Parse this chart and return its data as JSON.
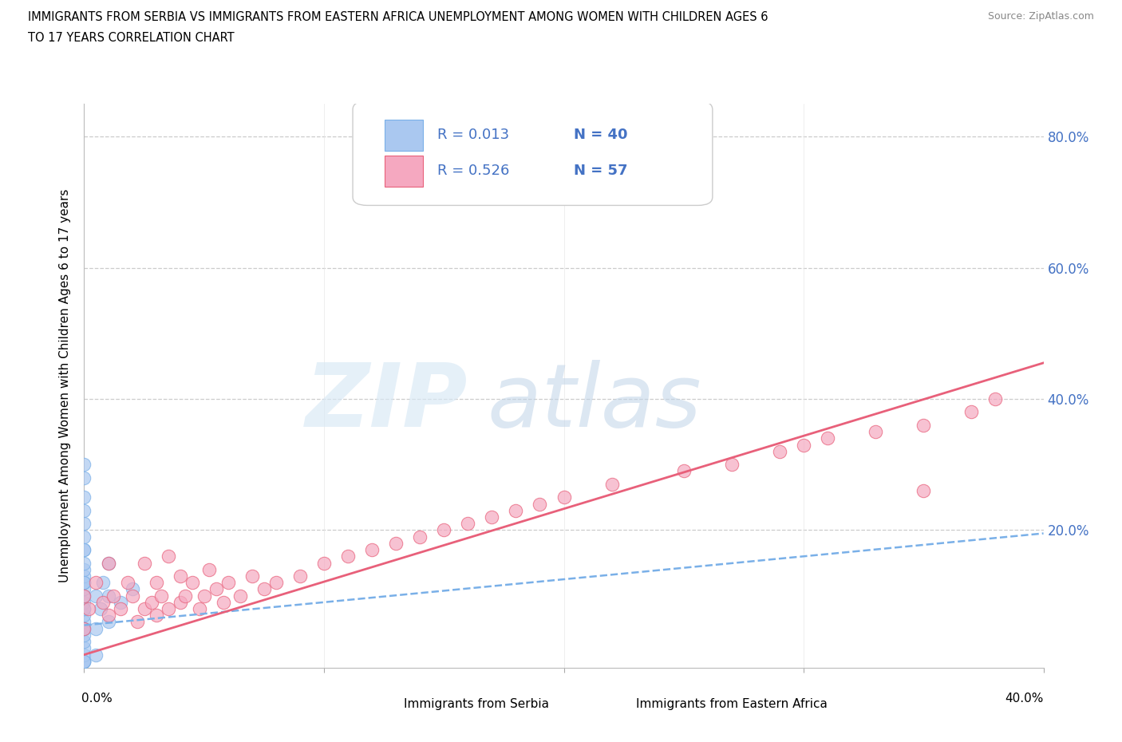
{
  "title_line1": "IMMIGRANTS FROM SERBIA VS IMMIGRANTS FROM EASTERN AFRICA UNEMPLOYMENT AMONG WOMEN WITH CHILDREN AGES 6",
  "title_line2": "TO 17 YEARS CORRELATION CHART",
  "source": "Source: ZipAtlas.com",
  "ylabel": "Unemployment Among Women with Children Ages 6 to 17 years",
  "xlim": [
    0.0,
    0.4
  ],
  "ylim": [
    -0.01,
    0.85
  ],
  "yticks": [
    0.0,
    0.2,
    0.4,
    0.6,
    0.8
  ],
  "ytick_labels": [
    "",
    "20.0%",
    "40.0%",
    "60.0%",
    "80.0%"
  ],
  "legend_R1": "R = 0.013",
  "legend_N1": "N = 40",
  "legend_R2": "R = 0.526",
  "legend_N2": "N = 57",
  "legend_text_color": "#4472c4",
  "label1": "Immigrants from Serbia",
  "label2": "Immigrants from Eastern Africa",
  "series1_color": "#aac8f0",
  "series2_color": "#f5a8c0",
  "trendline1_color": "#7ab0e8",
  "trendline2_color": "#e8607a",
  "serbia_x": [
    0.0,
    0.0,
    0.0,
    0.0,
    0.0,
    0.0,
    0.0,
    0.0,
    0.0,
    0.0,
    0.0,
    0.0,
    0.0,
    0.0,
    0.0,
    0.0,
    0.0,
    0.0,
    0.0,
    0.0,
    0.0,
    0.0,
    0.0,
    0.0,
    0.0,
    0.0,
    0.0,
    0.0,
    0.0,
    0.0,
    0.005,
    0.005,
    0.005,
    0.007,
    0.008,
    0.01,
    0.01,
    0.01,
    0.015,
    0.02
  ],
  "serbia_y": [
    0.0,
    0.0,
    0.0,
    0.01,
    0.02,
    0.03,
    0.04,
    0.05,
    0.06,
    0.07,
    0.08,
    0.09,
    0.1,
    0.11,
    0.12,
    0.13,
    0.14,
    0.15,
    0.17,
    0.19,
    0.21,
    0.23,
    0.25,
    0.28,
    0.3,
    0.0,
    0.05,
    0.08,
    0.12,
    0.17,
    0.01,
    0.05,
    0.1,
    0.08,
    0.12,
    0.06,
    0.1,
    0.15,
    0.09,
    0.11
  ],
  "eastafrica_x": [
    0.0,
    0.0,
    0.002,
    0.005,
    0.008,
    0.01,
    0.01,
    0.012,
    0.015,
    0.018,
    0.02,
    0.022,
    0.025,
    0.025,
    0.028,
    0.03,
    0.03,
    0.032,
    0.035,
    0.035,
    0.04,
    0.04,
    0.042,
    0.045,
    0.048,
    0.05,
    0.052,
    0.055,
    0.058,
    0.06,
    0.065,
    0.07,
    0.075,
    0.08,
    0.09,
    0.1,
    0.11,
    0.12,
    0.13,
    0.14,
    0.15,
    0.16,
    0.17,
    0.18,
    0.19,
    0.2,
    0.22,
    0.25,
    0.27,
    0.29,
    0.3,
    0.31,
    0.33,
    0.35,
    0.37,
    0.38,
    0.35
  ],
  "eastafrica_y": [
    0.05,
    0.1,
    0.08,
    0.12,
    0.09,
    0.07,
    0.15,
    0.1,
    0.08,
    0.12,
    0.1,
    0.06,
    0.08,
    0.15,
    0.09,
    0.07,
    0.12,
    0.1,
    0.08,
    0.16,
    0.09,
    0.13,
    0.1,
    0.12,
    0.08,
    0.1,
    0.14,
    0.11,
    0.09,
    0.12,
    0.1,
    0.13,
    0.11,
    0.12,
    0.13,
    0.15,
    0.16,
    0.17,
    0.18,
    0.19,
    0.2,
    0.21,
    0.22,
    0.23,
    0.24,
    0.25,
    0.27,
    0.29,
    0.3,
    0.32,
    0.33,
    0.34,
    0.35,
    0.36,
    0.38,
    0.4,
    0.26
  ],
  "serbia_trendline_x": [
    0.0,
    0.4
  ],
  "serbia_trendline_y": [
    0.055,
    0.195
  ],
  "eastafrica_trendline_x": [
    0.0,
    0.4
  ],
  "eastafrica_trendline_y": [
    0.01,
    0.455
  ]
}
